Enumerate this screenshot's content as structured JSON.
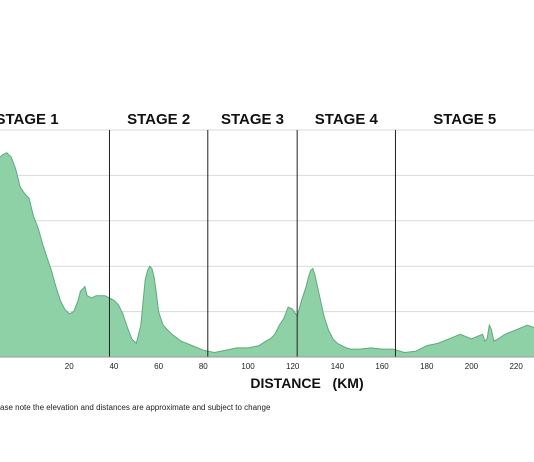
{
  "chart_data": {
    "type": "area",
    "title": "",
    "xlabel": "DISTANCE   (KM)",
    "ylabel": "",
    "xlim": [
      -11,
      228
    ],
    "ylim": [
      0,
      100
    ],
    "grid": true,
    "fill_color": "#8fd1a7",
    "line_color": "#5fa97c",
    "xticks": [
      20,
      40,
      60,
      80,
      100,
      120,
      140,
      160,
      180,
      200,
      220
    ],
    "stages": [
      {
        "label": "STAGE 1",
        "start": -11,
        "end": 38
      },
      {
        "label": "STAGE 2",
        "start": 38,
        "end": 82
      },
      {
        "label": "STAGE 3",
        "start": 82,
        "end": 122
      },
      {
        "label": "STAGE 4",
        "start": 122,
        "end": 166
      },
      {
        "label": "STAGE 5",
        "start": 166,
        "end": 228
      }
    ],
    "x": [
      -11,
      -10,
      -8,
      -6,
      -4,
      -2,
      0,
      2,
      4,
      6,
      8,
      10,
      12,
      14,
      16,
      18,
      20,
      22,
      24,
      25,
      27,
      28,
      30,
      32,
      34,
      36,
      38,
      40,
      42,
      44,
      46,
      48,
      50,
      52,
      53,
      54,
      55,
      56,
      57,
      58,
      59,
      60,
      62,
      64,
      66,
      70,
      75,
      80,
      85,
      90,
      95,
      100,
      105,
      108,
      110,
      112,
      114,
      116,
      118,
      120,
      122,
      124,
      126,
      127,
      128,
      129,
      130,
      132,
      134,
      136,
      138,
      140,
      142,
      144,
      146,
      150,
      155,
      160,
      165,
      170,
      175,
      180,
      185,
      190,
      195,
      200,
      205,
      206,
      207,
      208,
      209,
      210,
      212,
      215,
      220,
      225,
      228
    ],
    "y": [
      88,
      89,
      90,
      88,
      83,
      75,
      72,
      70,
      62,
      57,
      50,
      44,
      38,
      31,
      25,
      21,
      19,
      20,
      25,
      29,
      31,
      27,
      26,
      27,
      27,
      27,
      26,
      25,
      23,
      19,
      13,
      8,
      6,
      14,
      24,
      34,
      38,
      40,
      39,
      35,
      28,
      20,
      14,
      12,
      10,
      7,
      5,
      3,
      2,
      3,
      4,
      4,
      5,
      7,
      8,
      10,
      14,
      17,
      22,
      21,
      18,
      25,
      31,
      35,
      38,
      39,
      36,
      27,
      18,
      12,
      8,
      6,
      5,
      4,
      3.5,
      3.5,
      4,
      3.5,
      3.5,
      2,
      2.5,
      5,
      6,
      8,
      10,
      8,
      10,
      7,
      8,
      14,
      12,
      7,
      8,
      10,
      12,
      14,
      13
    ]
  },
  "note": "ase note the elevation and distances are approximate and subject to change"
}
